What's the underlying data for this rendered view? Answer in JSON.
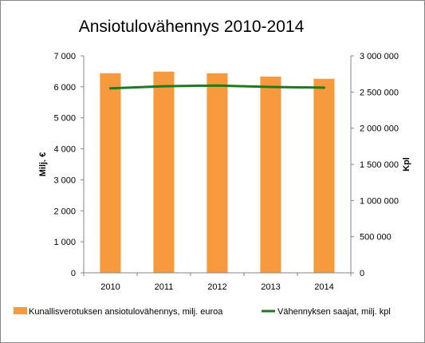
{
  "chart_data": {
    "type": "bar",
    "title": "Ansiotulovähennys 2010-2014",
    "categories": [
      "2010",
      "2011",
      "2012",
      "2013",
      "2014"
    ],
    "ylabel": "Milj. €",
    "y2label": "Kpl",
    "ylim": [
      0,
      7000
    ],
    "y2lim": [
      0,
      3000000
    ],
    "yticks": [
      "0",
      "1 000",
      "2 000",
      "3 000",
      "4 000",
      "5 000",
      "6 000",
      "7 000"
    ],
    "y2ticks": [
      "0",
      "500 000",
      "1 000 000",
      "1 500 000",
      "2 000 000",
      "2 500 000",
      "3 000 000"
    ],
    "grid": false,
    "legend_position": "bottom",
    "series": [
      {
        "name": "Kunallisverotuksen ansiotulovähennys, milj. euroa",
        "type": "bar",
        "axis": "left",
        "color": "#f79a3e",
        "values": [
          6440,
          6490,
          6440,
          6330,
          6260
        ]
      },
      {
        "name": "Vähennyksen saajat, milj. kpl",
        "type": "line",
        "axis": "right",
        "color": "#1f7a1f",
        "values": [
          2550000,
          2580000,
          2590000,
          2570000,
          2560000
        ]
      }
    ]
  }
}
